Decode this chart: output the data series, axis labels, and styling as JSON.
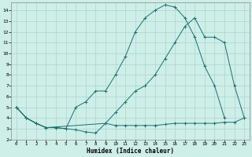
{
  "xlabel": "Humidex (Indice chaleur)",
  "bg_color": "#ceeee8",
  "grid_color": "#aed4ce",
  "line_color": "#1a7070",
  "xlim": [
    -0.5,
    23.5
  ],
  "ylim": [
    2,
    14.7
  ],
  "xticks": [
    0,
    1,
    2,
    3,
    4,
    5,
    6,
    7,
    8,
    9,
    10,
    11,
    12,
    13,
    14,
    15,
    16,
    17,
    18,
    19,
    20,
    21,
    22,
    23
  ],
  "yticks": [
    2,
    3,
    4,
    5,
    6,
    7,
    8,
    9,
    10,
    11,
    12,
    13,
    14
  ],
  "line1_x": [
    0,
    1,
    2,
    3,
    4,
    5,
    6,
    7,
    8,
    9,
    10,
    11,
    12,
    13,
    14,
    15,
    16,
    17,
    18,
    19,
    20,
    21,
    22,
    23
  ],
  "line1_y": [
    5.0,
    4.0,
    3.5,
    3.1,
    3.1,
    3.0,
    2.9,
    2.7,
    2.6,
    3.5,
    3.3,
    3.3,
    3.3,
    3.3,
    3.3,
    3.4,
    3.5,
    3.5,
    3.5,
    3.5,
    3.5,
    3.6,
    3.6,
    4.0
  ],
  "line2_x": [
    0,
    1,
    2,
    3,
    4,
    5,
    6,
    7,
    8,
    9,
    10,
    11,
    12,
    13,
    14,
    15,
    16,
    17,
    18,
    19,
    20,
    21
  ],
  "line2_y": [
    5.0,
    4.0,
    3.5,
    3.1,
    3.1,
    3.0,
    5.0,
    5.5,
    6.5,
    6.5,
    8.0,
    9.7,
    12.0,
    13.3,
    14.0,
    14.5,
    14.3,
    13.3,
    11.5,
    8.8,
    7.0,
    4.0
  ],
  "line3_x": [
    0,
    1,
    2,
    3,
    9,
    10,
    11,
    12,
    13,
    14,
    15,
    16,
    17,
    18,
    19,
    20,
    21,
    22,
    23
  ],
  "line3_y": [
    5.0,
    4.0,
    3.5,
    3.1,
    3.5,
    4.5,
    5.5,
    6.5,
    7.0,
    8.0,
    9.5,
    11.0,
    12.5,
    13.3,
    11.5,
    11.5,
    11.0,
    7.0,
    4.0
  ]
}
